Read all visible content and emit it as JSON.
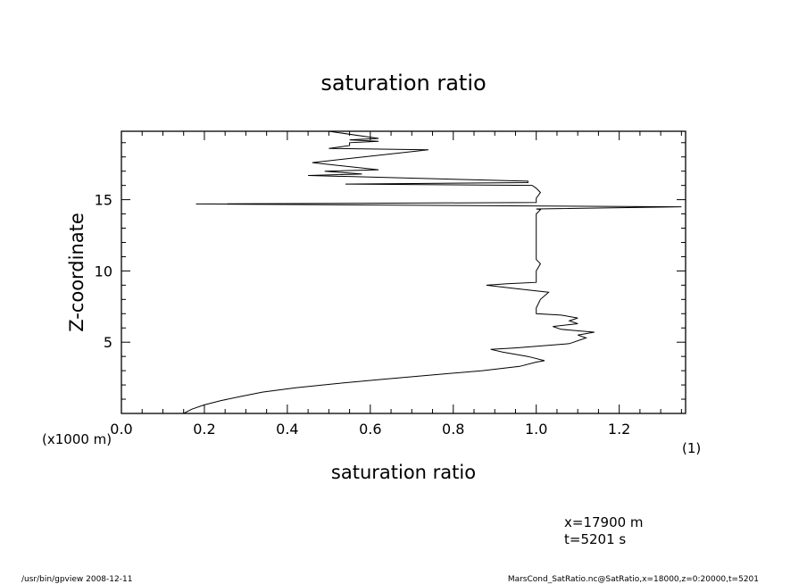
{
  "chart_data": {
    "type": "line",
    "title": "saturation ratio",
    "xlabel": "saturation ratio",
    "ylabel": "Z-coordinate",
    "xlim": [
      0.0,
      1.36
    ],
    "ylim": [
      0,
      19.8
    ],
    "xticks": [
      "0.0",
      "0.2",
      "0.4",
      "0.6",
      "0.8",
      "1.0",
      "1.2"
    ],
    "yticks": [
      "5",
      "10",
      "15"
    ],
    "yunit": "(x1000 m)",
    "xunit": "(1)",
    "grid": false,
    "series": [
      {
        "points": [
          [
            0.15,
            0.0
          ],
          [
            0.17,
            0.3
          ],
          [
            0.2,
            0.6
          ],
          [
            0.24,
            0.9
          ],
          [
            0.29,
            1.2
          ],
          [
            0.34,
            1.5
          ],
          [
            0.42,
            1.8
          ],
          [
            0.52,
            2.1
          ],
          [
            0.63,
            2.4
          ],
          [
            0.75,
            2.7
          ],
          [
            0.87,
            3.0
          ],
          [
            0.96,
            3.3
          ],
          [
            1.0,
            3.6
          ],
          [
            1.02,
            3.7
          ],
          [
            0.98,
            4.0
          ],
          [
            0.92,
            4.3
          ],
          [
            0.89,
            4.5
          ],
          [
            0.95,
            4.6
          ],
          [
            1.08,
            4.9
          ],
          [
            1.12,
            5.3
          ],
          [
            1.1,
            5.5
          ],
          [
            1.14,
            5.7
          ],
          [
            1.06,
            5.9
          ],
          [
            1.04,
            6.1
          ],
          [
            1.1,
            6.3
          ],
          [
            1.08,
            6.5
          ],
          [
            1.1,
            6.7
          ],
          [
            1.06,
            6.9
          ],
          [
            1.0,
            7.0
          ],
          [
            1.0,
            7.4
          ],
          [
            1.01,
            8.0
          ],
          [
            1.03,
            8.5
          ],
          [
            1.0,
            8.6
          ],
          [
            0.94,
            8.8
          ],
          [
            0.88,
            9.0
          ],
          [
            0.93,
            9.1
          ],
          [
            1.0,
            9.2
          ],
          [
            1.0,
            10.0
          ],
          [
            1.01,
            10.5
          ],
          [
            1.0,
            10.8
          ],
          [
            1.0,
            11.5
          ],
          [
            1.0,
            12.5
          ],
          [
            1.0,
            13.5
          ],
          [
            1.0,
            14.0
          ],
          [
            1.01,
            14.3
          ],
          [
            1.0,
            14.35
          ],
          [
            1.35,
            14.5
          ],
          [
            0.18,
            14.7
          ],
          [
            1.0,
            14.8
          ],
          [
            1.0,
            15.1
          ],
          [
            1.01,
            15.5
          ],
          [
            1.0,
            15.8
          ],
          [
            0.99,
            16.0
          ],
          [
            0.54,
            16.1
          ],
          [
            0.98,
            16.2
          ],
          [
            0.98,
            16.3
          ],
          [
            0.45,
            16.7
          ],
          [
            0.58,
            16.8
          ],
          [
            0.49,
            17.0
          ],
          [
            0.62,
            17.1
          ],
          [
            0.46,
            17.6
          ],
          [
            0.74,
            18.5
          ],
          [
            0.5,
            18.6
          ],
          [
            0.55,
            18.8
          ],
          [
            0.55,
            19.0
          ],
          [
            0.62,
            19.1
          ],
          [
            0.55,
            19.2
          ],
          [
            0.62,
            19.3
          ],
          [
            0.5,
            19.8
          ]
        ]
      }
    ]
  },
  "annotations": {
    "position": "x=17900  m",
    "time": "t=5201  s"
  },
  "footer": {
    "left": "/usr/bin/gpview   2008-12-11",
    "right": "MarsCond_SatRatio.nc@SatRatio,x=18000,z=0:20000,t=5201"
  }
}
